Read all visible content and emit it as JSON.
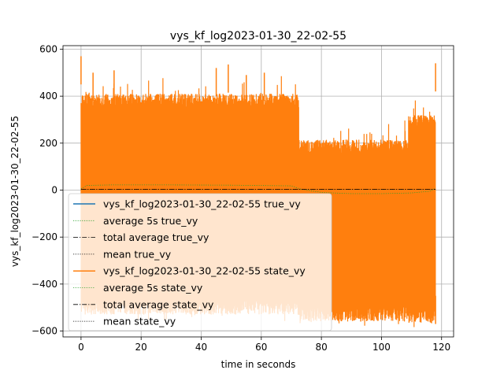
{
  "chart_data": {
    "type": "line",
    "title": "vys_kf_log2023-01-30_22-02-55",
    "xlabel": "time in seconds",
    "ylabel": "vys_kf_log2023-01-30_22-02-55",
    "xlim": [
      -6,
      124
    ],
    "ylim": [
      -625,
      615
    ],
    "x_ticks": [
      0,
      20,
      40,
      60,
      80,
      100,
      120
    ],
    "y_ticks": [
      -600,
      -400,
      -200,
      0,
      200,
      400,
      600
    ],
    "grid": true,
    "legend_position": "lower-left",
    "colors": {
      "true_vy": "#1f77b4",
      "state_vy": "#ff7f0e",
      "average_5s": "#2ca02c",
      "total_average": "#000000",
      "mean": "#000000"
    },
    "series": [
      {
        "name": "vys_kf_log2023-01-30_22-02-55 true_vy",
        "style": "solid",
        "x": [
          0,
          118
        ],
        "y": [
          0,
          0
        ]
      },
      {
        "name": "average 5s true_vy",
        "style": "dotted",
        "x": [
          0,
          118
        ],
        "y": [
          0,
          0
        ]
      },
      {
        "name": "total average true_vy",
        "style": "dashdot",
        "x": [
          0,
          118
        ],
        "y": [
          0,
          0
        ]
      },
      {
        "name": "mean true_vy",
        "style": "dotted",
        "x": [
          0,
          118
        ],
        "y": [
          0,
          0
        ]
      },
      {
        "name": "vys_kf_log2023-01-30_22-02-55 state_vy",
        "style": "solid",
        "envelope": [
          {
            "x_start": 0,
            "x_end": 72.5,
            "upper": 410,
            "lower": -530
          },
          {
            "x_start": 72.5,
            "x_end": 109,
            "upper": 215,
            "lower": -560
          },
          {
            "x_start": 109,
            "x_end": 118,
            "upper": 320,
            "lower": -565
          }
        ],
        "peaks": [
          {
            "x": 0,
            "y": 570
          },
          {
            "x": 0.3,
            "y": -300
          },
          {
            "x": 4,
            "y": 500
          },
          {
            "x": 11,
            "y": 510
          },
          {
            "x": 45,
            "y": 520
          },
          {
            "x": 49,
            "y": 535
          },
          {
            "x": 55,
            "y": 490
          },
          {
            "x": 61,
            "y": 500
          },
          {
            "x": 118,
            "y": 540
          },
          {
            "x": 118,
            "y": -570
          }
        ]
      },
      {
        "name": "average 5s state_vy",
        "style": "dotted",
        "x": [
          0,
          2,
          10,
          30,
          50,
          70,
          73,
          80,
          90,
          100,
          110,
          116,
          118
        ],
        "y": [
          5,
          20,
          22,
          22,
          21,
          18,
          5,
          -10,
          -15,
          -15,
          -12,
          -5,
          8
        ]
      },
      {
        "name": "total average state_vy",
        "style": "dashdot",
        "x": [
          0,
          118
        ],
        "y": [
          3,
          3
        ]
      },
      {
        "name": "mean state_vy",
        "style": "dotted",
        "x": [
          0,
          118
        ],
        "y": [
          3,
          3
        ]
      }
    ]
  }
}
